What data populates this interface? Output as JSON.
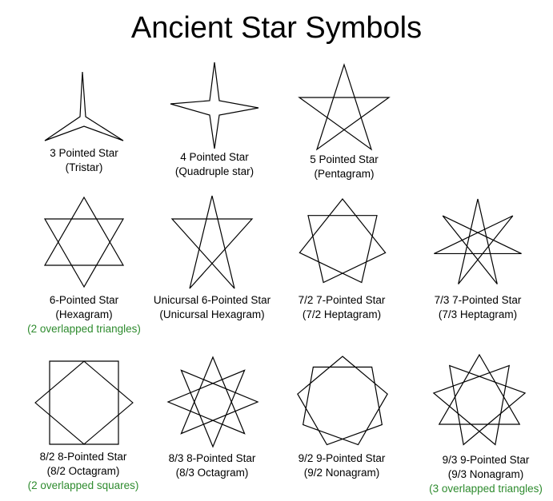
{
  "title": "Ancient Star Symbols",
  "colors": {
    "note": "#2e8b2e",
    "stroke": "#000000",
    "background": "#ffffff"
  },
  "stars": [
    {
      "id": "tristar",
      "name": "3 Pointed Star",
      "alt": "(Tristar)",
      "note": ""
    },
    {
      "id": "quadruple-star",
      "name": "4 Pointed Star",
      "alt": "(Quadruple star)",
      "note": ""
    },
    {
      "id": "pentagram",
      "name": "5 Pointed Star",
      "alt": "(Pentagram)",
      "note": ""
    },
    {
      "id": "hexagram",
      "name": "6-Pointed Star",
      "alt": "(Hexagram)",
      "note": "(2 overlapped triangles)"
    },
    {
      "id": "unicursal-hexagram",
      "name": "Unicursal 6-Pointed Star",
      "alt": "(Unicursal Hexagram)",
      "note": ""
    },
    {
      "id": "heptagram-7-2",
      "name": "7/2 7-Pointed Star",
      "alt": "(7/2 Heptagram)",
      "note": ""
    },
    {
      "id": "heptagram-7-3",
      "name": "7/3 7-Pointed Star",
      "alt": "(7/3 Heptagram)",
      "note": ""
    },
    {
      "id": "octagram-8-2",
      "name": "8/2 8-Pointed Star",
      "alt": "(8/2 Octagram)",
      "note": "(2 overlapped squares)"
    },
    {
      "id": "octagram-8-3",
      "name": "8/3 8-Pointed Star",
      "alt": "(8/3 Octagram)",
      "note": ""
    },
    {
      "id": "nonagram-9-2",
      "name": "9/2 9-Pointed Star",
      "alt": "(9/2 Nonagram)",
      "note": ""
    },
    {
      "id": "nonagram-9-3",
      "name": "9/3 9-Pointed Star",
      "alt": "(9/3 Nonagram)",
      "note": "(3 overlapped triangles)"
    }
  ]
}
